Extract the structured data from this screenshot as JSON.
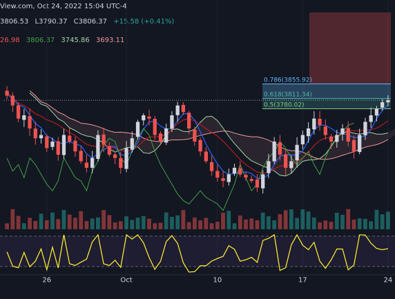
{
  "header": {
    "line1": "View.com, Oct 24, 2022 15:04 UTC-4",
    "ohlc": {
      "open": "3806.53",
      "low": "L3790.37",
      "close": "C3806.37",
      "change": "+15.58 (+0.41%)"
    },
    "ichimoku": [
      "26.98",
      "3806.37",
      "3745.86",
      "3693.11"
    ]
  },
  "colors": {
    "background": "#131722",
    "bull": "#d1d4dc",
    "bear": "#ef5350",
    "tenkan": "#2962ff",
    "kijun": "#b71c1c",
    "chikou": "#43a047",
    "spanA": "#a5d6a7",
    "spanB": "#ef9a9a",
    "rsi": "#f7e633",
    "fib_786": "#64b5f6",
    "fib_618": "#4db6ac",
    "fib_5": "#81c784"
  },
  "chart_data": {
    "type": "candlestick",
    "instrument_time": "Oct 24, 2022 15:04 UTC-4",
    "ylim": [
      3480,
      3960
    ],
    "x_ticks": [
      {
        "i": 7,
        "label": "26"
      },
      {
        "i": 21,
        "label": "Oct"
      },
      {
        "i": 37,
        "label": "10"
      },
      {
        "i": 52,
        "label": "17"
      },
      {
        "i": 67,
        "label": "24"
      }
    ],
    "fib_levels": [
      {
        "ratio": 0.786,
        "price": 3855.92,
        "label": "0.786(3855.92)"
      },
      {
        "ratio": 0.618,
        "price": 3811.34,
        "label": "0.618(3811.34)"
      },
      {
        "ratio": 0.5,
        "price": 3780.02,
        "label": "0.5(3780.02)"
      }
    ],
    "closes": [
      3820,
      3790,
      3750,
      3760,
      3720,
      3690,
      3700,
      3660,
      3680,
      3640,
      3700,
      3680,
      3650,
      3620,
      3600,
      3630,
      3700,
      3670,
      3640,
      3630,
      3600,
      3660,
      3690,
      3740,
      3760,
      3750,
      3700,
      3680,
      3720,
      3760,
      3790,
      3770,
      3720,
      3680,
      3650,
      3620,
      3590,
      3570,
      3560,
      3580,
      3600,
      3580,
      3570,
      3560,
      3540,
      3580,
      3620,
      3680,
      3640,
      3600,
      3620,
      3670,
      3700,
      3720,
      3750,
      3730,
      3700,
      3680,
      3700,
      3720,
      3680,
      3650,
      3700,
      3740,
      3760,
      3780,
      3800,
      3806
    ]
  }
}
